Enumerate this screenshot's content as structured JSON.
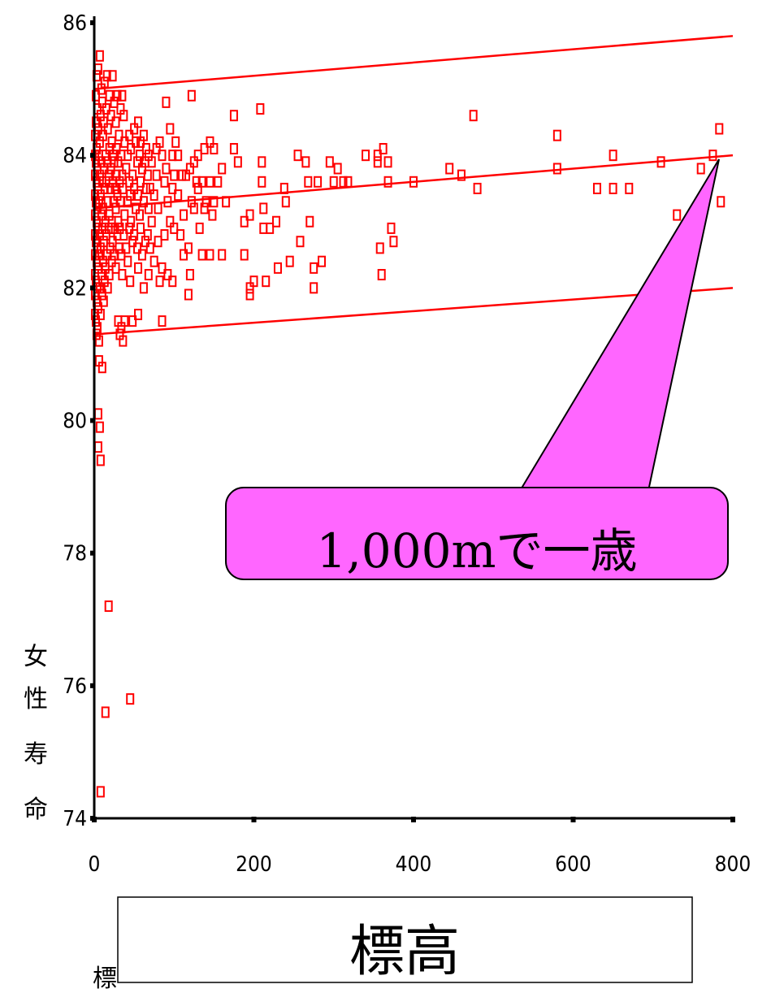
{
  "chart_data": {
    "type": "scatter",
    "title": "",
    "xlabel": "標高",
    "ylabel": "女性寿命",
    "xlim": [
      0,
      800
    ],
    "ylim": [
      74,
      86
    ],
    "x_ticks": [
      0,
      200,
      400,
      600,
      800
    ],
    "y_ticks": [
      74,
      76,
      78,
      80,
      82,
      84,
      86
    ],
    "x_tick_labels": [
      "0",
      "200",
      "400",
      "600",
      "800"
    ],
    "y_tick_labels": [
      "74",
      "76",
      "78",
      "80",
      "82",
      "84",
      "86"
    ],
    "grid": false,
    "legend": "none",
    "marker": "open-square",
    "series_color": "#ff0000",
    "points": [
      [
        1,
        84.3
      ],
      [
        1,
        84.0
      ],
      [
        1,
        83.7
      ],
      [
        1,
        83.4
      ],
      [
        1,
        83.1
      ],
      [
        1,
        82.8
      ],
      [
        1,
        82.5
      ],
      [
        1,
        82.2
      ],
      [
        1,
        81.9
      ],
      [
        1,
        81.6
      ],
      [
        2,
        84.9
      ],
      [
        2,
        84.5
      ],
      [
        2,
        83.9
      ],
      [
        2,
        83.3
      ],
      [
        2,
        82.7
      ],
      [
        2,
        82.1
      ],
      [
        2,
        81.5
      ],
      [
        3,
        85.2
      ],
      [
        3,
        84.1
      ],
      [
        3,
        83.6
      ],
      [
        3,
        83.0
      ],
      [
        3,
        82.4
      ],
      [
        3,
        81.8
      ],
      [
        3,
        81.3
      ],
      [
        4,
        84.7
      ],
      [
        4,
        83.8
      ],
      [
        4,
        83.2
      ],
      [
        4,
        82.6
      ],
      [
        4,
        82.0
      ],
      [
        4,
        81.4
      ],
      [
        5,
        85.3
      ],
      [
        5,
        84.4
      ],
      [
        5,
        83.5
      ],
      [
        5,
        82.9
      ],
      [
        5,
        82.3
      ],
      [
        5,
        81.7
      ],
      [
        5,
        80.1
      ],
      [
        5,
        79.6
      ],
      [
        6,
        84.0
      ],
      [
        6,
        83.3
      ],
      [
        6,
        82.5
      ],
      [
        6,
        81.2
      ],
      [
        6,
        80.9
      ],
      [
        7,
        85.5
      ],
      [
        7,
        84.2
      ],
      [
        7,
        83.7
      ],
      [
        7,
        82.8
      ],
      [
        7,
        82.0
      ],
      [
        7,
        79.9
      ],
      [
        8,
        84.6
      ],
      [
        8,
        83.4
      ],
      [
        8,
        82.6
      ],
      [
        8,
        81.6
      ],
      [
        8,
        79.4
      ],
      [
        8,
        74.4
      ],
      [
        9,
        85.0
      ],
      [
        9,
        83.9
      ],
      [
        9,
        83.1
      ],
      [
        9,
        82.2
      ],
      [
        10,
        84.8
      ],
      [
        10,
        83.6
      ],
      [
        10,
        82.9
      ],
      [
        10,
        81.9
      ],
      [
        10,
        80.8
      ],
      [
        11,
        84.3
      ],
      [
        11,
        83.2
      ],
      [
        11,
        82.4
      ],
      [
        12,
        84.5
      ],
      [
        12,
        83.8
      ],
      [
        12,
        82.7
      ],
      [
        12,
        81.8
      ],
      [
        13,
        85.1
      ],
      [
        13,
        83.5
      ],
      [
        13,
        82.1
      ],
      [
        14,
        84.0
      ],
      [
        14,
        83.0
      ],
      [
        14,
        82.3
      ],
      [
        14,
        75.6
      ],
      [
        15,
        84.7
      ],
      [
        15,
        83.6
      ],
      [
        15,
        82.8
      ],
      [
        16,
        85.2
      ],
      [
        16,
        83.9
      ],
      [
        16,
        82.5
      ],
      [
        17,
        84.4
      ],
      [
        17,
        83.3
      ],
      [
        17,
        82.0
      ],
      [
        18,
        83.7
      ],
      [
        18,
        82.9
      ],
      [
        18,
        77.2
      ],
      [
        19,
        84.9
      ],
      [
        19,
        84.1
      ],
      [
        19,
        83.1
      ],
      [
        19,
        82.2
      ],
      [
        20,
        83.5
      ],
      [
        20,
        82.6
      ],
      [
        21,
        84.6
      ],
      [
        21,
        83.8
      ],
      [
        21,
        82.9
      ],
      [
        22,
        84.2
      ],
      [
        22,
        83.0
      ],
      [
        22,
        82.4
      ],
      [
        23,
        85.2
      ],
      [
        23,
        83.6
      ],
      [
        23,
        82.7
      ],
      [
        24,
        84.0
      ],
      [
        24,
        83.3
      ],
      [
        25,
        84.8
      ],
      [
        25,
        83.9
      ],
      [
        25,
        82.5
      ],
      [
        26,
        83.5
      ],
      [
        26,
        82.9
      ],
      [
        27,
        84.5
      ],
      [
        27,
        83.2
      ],
      [
        27,
        82.3
      ],
      [
        28,
        84.1
      ],
      [
        28,
        83.7
      ],
      [
        29,
        84.9
      ],
      [
        29,
        83.4
      ],
      [
        29,
        82.8
      ],
      [
        30,
        83.9
      ],
      [
        30,
        83.0
      ],
      [
        30,
        81.5
      ],
      [
        31,
        84.3
      ],
      [
        31,
        82.6
      ],
      [
        32,
        83.6
      ],
      [
        32,
        82.9
      ],
      [
        32,
        81.3
      ],
      [
        33,
        84.7
      ],
      [
        33,
        83.3
      ],
      [
        34,
        84.0
      ],
      [
        34,
        82.5
      ],
      [
        34,
        81.4
      ],
      [
        35,
        84.9
      ],
      [
        35,
        83.7
      ],
      [
        35,
        82.2
      ],
      [
        36,
        83.5
      ],
      [
        36,
        81.2
      ],
      [
        37,
        84.6
      ],
      [
        37,
        82.8
      ],
      [
        38,
        84.2
      ],
      [
        38,
        83.1
      ],
      [
        38,
        81.5
      ],
      [
        40,
        83.8
      ],
      [
        40,
        82.6
      ],
      [
        42,
        84.0
      ],
      [
        42,
        83.3
      ],
      [
        42,
        82.4
      ],
      [
        44,
        84.3
      ],
      [
        44,
        83.6
      ],
      [
        44,
        82.9
      ],
      [
        45,
        83.4
      ],
      [
        45,
        82.1
      ],
      [
        45,
        75.8
      ],
      [
        46,
        84.1
      ],
      [
        46,
        83.0
      ],
      [
        48,
        83.7
      ],
      [
        48,
        82.7
      ],
      [
        48,
        81.5
      ],
      [
        50,
        84.4
      ],
      [
        50,
        83.5
      ],
      [
        50,
        82.8
      ],
      [
        52,
        84.2
      ],
      [
        52,
        83.2
      ],
      [
        54,
        83.9
      ],
      [
        54,
        82.6
      ],
      [
        55,
        84.5
      ],
      [
        55,
        83.4
      ],
      [
        55,
        82.3
      ],
      [
        55,
        81.6
      ],
      [
        57,
        84.0
      ],
      [
        57,
        83.1
      ],
      [
        58,
        84.2
      ],
      [
        58,
        83.6
      ],
      [
        58,
        82.9
      ],
      [
        60,
        83.8
      ],
      [
        60,
        82.5
      ],
      [
        62,
        84.3
      ],
      [
        62,
        83.3
      ],
      [
        62,
        82.0
      ],
      [
        64,
        83.9
      ],
      [
        64,
        82.7
      ],
      [
        65,
        84.1
      ],
      [
        65,
        83.5
      ],
      [
        67,
        83.7
      ],
      [
        67,
        82.8
      ],
      [
        68,
        84.0
      ],
      [
        68,
        83.2
      ],
      [
        68,
        82.2
      ],
      [
        70,
        83.5
      ],
      [
        70,
        82.6
      ],
      [
        72,
        83.9
      ],
      [
        72,
        83.0
      ],
      [
        75,
        83.4
      ],
      [
        75,
        82.4
      ],
      [
        78,
        84.1
      ],
      [
        78,
        83.7
      ],
      [
        80,
        82.7
      ],
      [
        80,
        83.2
      ],
      [
        82,
        84.2
      ],
      [
        82,
        82.1
      ],
      [
        85,
        84.0
      ],
      [
        85,
        82.3
      ],
      [
        85,
        81.5
      ],
      [
        88,
        83.6
      ],
      [
        88,
        82.8
      ],
      [
        90,
        84.8
      ],
      [
        90,
        83.8
      ],
      [
        92,
        83.3
      ],
      [
        92,
        82.2
      ],
      [
        95,
        84.4
      ],
      [
        95,
        83.0
      ],
      [
        98,
        84.0
      ],
      [
        98,
        83.5
      ],
      [
        98,
        82.1
      ],
      [
        100,
        83.7
      ],
      [
        100,
        82.9
      ],
      [
        102,
        84.2
      ],
      [
        105,
        84.0
      ],
      [
        105,
        83.4
      ],
      [
        108,
        82.8
      ],
      [
        110,
        83.7
      ],
      [
        112,
        83.1
      ],
      [
        112,
        82.5
      ],
      [
        115,
        83.7
      ],
      [
        118,
        82.6
      ],
      [
        118,
        81.9
      ],
      [
        120,
        83.8
      ],
      [
        120,
        82.2
      ],
      [
        122,
        84.9
      ],
      [
        122,
        83.3
      ],
      [
        125,
        83.9
      ],
      [
        125,
        83.2
      ],
      [
        128,
        83.6
      ],
      [
        130,
        84.0
      ],
      [
        130,
        83.5
      ],
      [
        132,
        82.9
      ],
      [
        135,
        83.6
      ],
      [
        135,
        82.5
      ],
      [
        138,
        84.1
      ],
      [
        138,
        83.2
      ],
      [
        140,
        83.3
      ],
      [
        145,
        84.2
      ],
      [
        145,
        83.6
      ],
      [
        145,
        82.5
      ],
      [
        148,
        83.1
      ],
      [
        150,
        84.1
      ],
      [
        150,
        83.3
      ],
      [
        155,
        83.6
      ],
      [
        160,
        83.8
      ],
      [
        160,
        82.5
      ],
      [
        165,
        83.3
      ],
      [
        175,
        84.6
      ],
      [
        175,
        84.1
      ],
      [
        180,
        83.9
      ],
      [
        188,
        83.0
      ],
      [
        188,
        82.5
      ],
      [
        195,
        83.1
      ],
      [
        195,
        82.0
      ],
      [
        195,
        81.9
      ],
      [
        200,
        82.1
      ],
      [
        208,
        84.7
      ],
      [
        210,
        83.9
      ],
      [
        210,
        83.6
      ],
      [
        212,
        83.2
      ],
      [
        212,
        82.9
      ],
      [
        215,
        82.1
      ],
      [
        220,
        82.9
      ],
      [
        228,
        83.0
      ],
      [
        230,
        82.3
      ],
      [
        238,
        83.5
      ],
      [
        240,
        83.3
      ],
      [
        245,
        82.4
      ],
      [
        255,
        84.0
      ],
      [
        258,
        82.7
      ],
      [
        265,
        83.9
      ],
      [
        268,
        83.6
      ],
      [
        270,
        83.0
      ],
      [
        275,
        82.3
      ],
      [
        275,
        82.0
      ],
      [
        280,
        83.6
      ],
      [
        285,
        82.4
      ],
      [
        295,
        83.9
      ],
      [
        300,
        83.6
      ],
      [
        305,
        83.8
      ],
      [
        312,
        83.6
      ],
      [
        318,
        83.6
      ],
      [
        340,
        84.0
      ],
      [
        355,
        84.0
      ],
      [
        355,
        83.9
      ],
      [
        358,
        82.6
      ],
      [
        360,
        82.2
      ],
      [
        362,
        84.1
      ],
      [
        368,
        83.9
      ],
      [
        368,
        83.6
      ],
      [
        372,
        82.9
      ],
      [
        375,
        82.7
      ],
      [
        400,
        83.6
      ],
      [
        445,
        83.8
      ],
      [
        460,
        83.7
      ],
      [
        475,
        84.6
      ],
      [
        480,
        83.5
      ],
      [
        580,
        84.3
      ],
      [
        580,
        83.8
      ],
      [
        630,
        83.5
      ],
      [
        650,
        84.0
      ],
      [
        650,
        83.5
      ],
      [
        670,
        83.5
      ],
      [
        700,
        82.1
      ],
      [
        710,
        83.9
      ],
      [
        730,
        83.1
      ],
      [
        760,
        83.8
      ],
      [
        775,
        84.0
      ],
      [
        783,
        84.4
      ],
      [
        785,
        83.3
      ]
    ],
    "regression_lines": [
      {
        "name": "upper",
        "x": [
          0,
          800
        ],
        "y": [
          85.0,
          85.8
        ]
      },
      {
        "name": "fit",
        "x": [
          0,
          800
        ],
        "y": [
          83.2,
          84.0
        ]
      },
      {
        "name": "lower",
        "x": [
          0,
          800
        ],
        "y": [
          81.3,
          82.0
        ]
      }
    ],
    "annotation": {
      "text": "1,000mで一歳",
      "points_to": [
        800,
        84.0
      ],
      "fill": "#ff66ff"
    }
  },
  "ylabel_chars": [
    "女",
    "性",
    "寿",
    "命"
  ],
  "xlabel_box": "標高",
  "stray_label": "標高"
}
